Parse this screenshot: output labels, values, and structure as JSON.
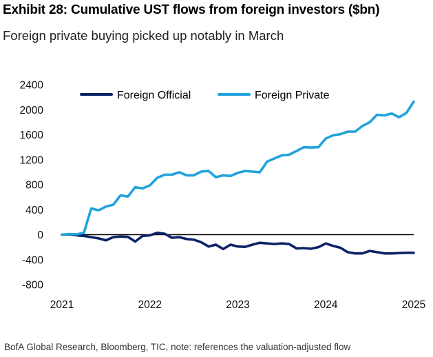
{
  "header": {
    "title": "Exhibit 28: Cumulative UST flows from foreign investors ($bn)",
    "subtitle": "Foreign private buying picked up notably in March"
  },
  "footer": {
    "source": "BofA Global Research, Bloomberg, TIC, note: references the valuation-adjusted flow"
  },
  "colors": {
    "official": "#0b2266",
    "private": "#1fa3dc",
    "zero_line": "#000000"
  },
  "chart_data": {
    "type": "line",
    "title": "Exhibit 28: Cumulative UST flows from foreign investors ($bn)",
    "subtitle": "Foreign private buying picked up notably in March",
    "xlabel": "",
    "ylabel": "",
    "xlim": [
      2021.0,
      2025.0
    ],
    "ylim": [
      -800,
      2400
    ],
    "yticks": [
      -800,
      -400,
      0,
      400,
      800,
      1200,
      1600,
      2000,
      2400
    ],
    "xticks": [
      2021,
      2022,
      2023,
      2024,
      2025
    ],
    "grid": false,
    "legend": "top",
    "series": [
      {
        "name": "Foreign Official",
        "color": "#0b2266",
        "x": [
          2021.0,
          2021.083,
          2021.167,
          2021.25,
          2021.333,
          2021.417,
          2021.5,
          2021.583,
          2021.667,
          2021.75,
          2021.833,
          2021.917,
          2022.0,
          2022.083,
          2022.167,
          2022.25,
          2022.333,
          2022.417,
          2022.5,
          2022.583,
          2022.667,
          2022.75,
          2022.833,
          2022.917,
          2023.0,
          2023.083,
          2023.167,
          2023.25,
          2023.333,
          2023.417,
          2023.5,
          2023.583,
          2023.667,
          2023.75,
          2023.833,
          2023.917,
          2024.0,
          2024.083,
          2024.167,
          2024.25,
          2024.333,
          2024.417,
          2024.5,
          2024.583,
          2024.667,
          2024.75,
          2024.833,
          2024.917,
          2025.0
        ],
        "values": [
          0,
          5,
          -10,
          -20,
          -40,
          -60,
          -90,
          -40,
          -30,
          -35,
          -110,
          -20,
          -10,
          30,
          15,
          -50,
          -40,
          -70,
          -80,
          -120,
          -190,
          -160,
          -230,
          -160,
          -190,
          -195,
          -160,
          -130,
          -140,
          -150,
          -140,
          -150,
          -220,
          -215,
          -225,
          -200,
          -140,
          -180,
          -210,
          -280,
          -300,
          -300,
          -260,
          -280,
          -300,
          -300,
          -295,
          -290,
          -290
        ]
      },
      {
        "name": "Foreign Private",
        "color": "#1fa3dc",
        "x": [
          2021.0,
          2021.083,
          2021.167,
          2021.25,
          2021.333,
          2021.417,
          2021.5,
          2021.583,
          2021.667,
          2021.75,
          2021.833,
          2021.917,
          2022.0,
          2022.083,
          2022.167,
          2022.25,
          2022.333,
          2022.417,
          2022.5,
          2022.583,
          2022.667,
          2022.75,
          2022.833,
          2022.917,
          2023.0,
          2023.083,
          2023.167,
          2023.25,
          2023.333,
          2023.417,
          2023.5,
          2023.583,
          2023.667,
          2023.75,
          2023.833,
          2023.917,
          2024.0,
          2024.083,
          2024.167,
          2024.25,
          2024.333,
          2024.417,
          2024.5,
          2024.583,
          2024.667,
          2024.75,
          2024.833,
          2024.917,
          2025.0
        ],
        "values": [
          0,
          10,
          5,
          30,
          420,
          390,
          450,
          480,
          630,
          610,
          760,
          740,
          790,
          910,
          960,
          960,
          1000,
          950,
          950,
          1010,
          1020,
          920,
          950,
          940,
          990,
          1020,
          1010,
          1000,
          1170,
          1220,
          1270,
          1280,
          1340,
          1400,
          1395,
          1400,
          1540,
          1590,
          1610,
          1650,
          1650,
          1740,
          1800,
          1920,
          1910,
          1940,
          1880,
          1950,
          2130
        ]
      }
    ]
  }
}
